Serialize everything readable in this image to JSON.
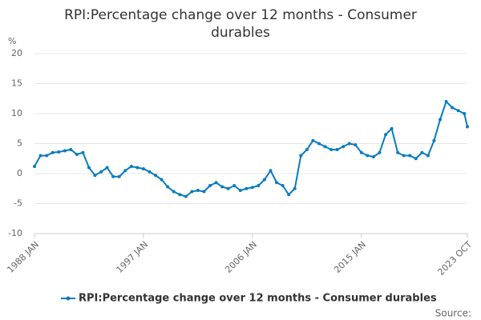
{
  "chart_data": {
    "type": "line",
    "title": "RPI:Percentage change over 12 months - Consumer durables",
    "y_unit": "%",
    "source": "Source:",
    "x": [
      "1988 JAN",
      "1988 JUL",
      "1989 JAN",
      "1989 JUL",
      "1990 JAN",
      "1990 JUL",
      "1991 JAN",
      "1991 JUL",
      "1992 JAN",
      "1992 JUL",
      "1993 JAN",
      "1993 JUL",
      "1994 JAN",
      "1994 JUL",
      "1995 JAN",
      "1995 JUL",
      "1996 JAN",
      "1996 JUL",
      "1997 JAN",
      "1997 JUL",
      "1998 JAN",
      "1998 JUL",
      "1999 JAN",
      "1999 JUL",
      "2000 JAN",
      "2000 JUL",
      "2001 JAN",
      "2001 JUL",
      "2002 JAN",
      "2002 JUL",
      "2003 JAN",
      "2003 JUL",
      "2004 JAN",
      "2004 JUL",
      "2005 JAN",
      "2005 JUL",
      "2006 JAN",
      "2006 JUL",
      "2007 JAN",
      "2007 JUL",
      "2008 JAN",
      "2008 JUL",
      "2009 JAN",
      "2009 JUL",
      "2010 JAN",
      "2010 JUL",
      "2011 JAN",
      "2011 JUL",
      "2012 JAN",
      "2012 JUL",
      "2013 JAN",
      "2013 JUL",
      "2014 JAN",
      "2014 JUL",
      "2015 JAN",
      "2015 JUL",
      "2016 JAN",
      "2016 JUL",
      "2017 JAN",
      "2017 JUL",
      "2018 JAN",
      "2018 JUL",
      "2019 JAN",
      "2019 JUL",
      "2020 JAN",
      "2020 JUL",
      "2021 JAN",
      "2021 JUL",
      "2022 JAN",
      "2022 JUL",
      "2023 JAN",
      "2023 JUL",
      "2023 OCT"
    ],
    "series": [
      {
        "name": "RPI:Percentage change over 12 months - Consumer durables",
        "color": "#0a7bbf",
        "values": [
          1.2,
          3.0,
          3.0,
          3.5,
          3.6,
          3.8,
          4.0,
          3.2,
          3.5,
          1.0,
          -0.3,
          0.3,
          1.0,
          -0.5,
          -0.5,
          0.5,
          1.2,
          1.0,
          0.8,
          0.3,
          -0.3,
          -1.0,
          -2.2,
          -3.0,
          -3.5,
          -3.8,
          -3.0,
          -2.8,
          -3.0,
          -2.0,
          -1.5,
          -2.2,
          -2.5,
          -2.0,
          -2.8,
          -2.5,
          -2.3,
          -2.0,
          -1.0,
          0.5,
          -1.5,
          -2.0,
          -3.5,
          -2.5,
          3.0,
          4.0,
          5.5,
          5.0,
          4.5,
          4.0,
          4.0,
          4.5,
          5.0,
          4.8,
          3.5,
          3.0,
          2.8,
          3.5,
          6.5,
          7.5,
          3.5,
          3.0,
          3.0,
          2.5,
          3.5,
          3.0,
          5.5,
          9.0,
          12.0,
          11.0,
          10.5,
          10.0,
          7.8
        ]
      }
    ],
    "xticks": [
      "1988 JAN",
      "1997 JAN",
      "2006 JAN",
      "2015 JAN",
      "2023 OCT"
    ],
    "ylim": [
      -10,
      20
    ],
    "yticks": [
      -10,
      -5,
      0,
      5,
      10,
      15,
      20
    ],
    "grid": true
  }
}
